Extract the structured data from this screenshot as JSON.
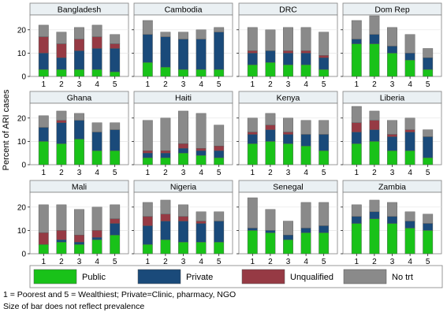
{
  "chart_data": {
    "type": "bar",
    "stacked": true,
    "ylabel": "Percent of ARI cases",
    "ylim": [
      0,
      25
    ],
    "yticks": [
      0,
      10,
      20
    ],
    "categories": [
      "1",
      "2",
      "3",
      "4",
      "5"
    ],
    "grid": true,
    "legend_position": "bottom",
    "series_names": [
      "Public",
      "Private",
      "Unqualified",
      "No trt"
    ],
    "series_colors": [
      "#19c219",
      "#1a4a7a",
      "#963a44",
      "#8a8a8a"
    ],
    "panels": [
      {
        "title": "Bangladesh",
        "public": [
          3,
          3,
          3,
          3,
          2
        ],
        "private": [
          7,
          5,
          8,
          9,
          10
        ],
        "unqualified": [
          7,
          6,
          5,
          5,
          2
        ],
        "no_trt": [
          5,
          5,
          5,
          5,
          4
        ]
      },
      {
        "title": "Cambodia",
        "public": [
          6,
          4,
          3,
          3,
          3
        ],
        "private": [
          12,
          13,
          13,
          13,
          16
        ],
        "unqualified": [
          0,
          0,
          0,
          0,
          0
        ],
        "no_trt": [
          6,
          2,
          3,
          4,
          2
        ]
      },
      {
        "title": "DRC",
        "public": [
          5,
          6,
          5,
          5,
          3
        ],
        "private": [
          5,
          5,
          5,
          5,
          5
        ],
        "unqualified": [
          1,
          0,
          1,
          1,
          1
        ],
        "no_trt": [
          10,
          9,
          10,
          10,
          10
        ]
      },
      {
        "title": "Dom Rep",
        "public": [
          14,
          14,
          10,
          7,
          3
        ],
        "private": [
          2,
          4,
          3,
          3,
          5
        ],
        "unqualified": [
          0,
          0,
          0,
          0,
          0
        ],
        "no_trt": [
          8,
          8,
          8,
          8,
          4
        ]
      },
      {
        "title": "Ghana",
        "public": [
          10,
          9,
          11,
          6,
          6
        ],
        "private": [
          6,
          9,
          8,
          8,
          9
        ],
        "unqualified": [
          0,
          1,
          0,
          0,
          0
        ],
        "no_trt": [
          5,
          4,
          3,
          4,
          3
        ]
      },
      {
        "title": "Haiti",
        "public": [
          3,
          3,
          5,
          4,
          3
        ],
        "private": [
          2,
          2,
          2,
          2,
          3
        ],
        "unqualified": [
          1,
          1,
          2,
          1,
          2
        ],
        "no_trt": [
          13,
          14,
          14,
          15,
          9
        ]
      },
      {
        "title": "Kenya",
        "public": [
          9,
          10,
          9,
          8,
          6
        ],
        "private": [
          4,
          5,
          4,
          5,
          7
        ],
        "unqualified": [
          1,
          2,
          1,
          0,
          0
        ],
        "no_trt": [
          6,
          5,
          6,
          6,
          6
        ]
      },
      {
        "title": "Liberia",
        "public": [
          9,
          10,
          6,
          6,
          3
        ],
        "private": [
          5,
          5,
          6,
          8,
          9
        ],
        "unqualified": [
          4,
          4,
          1,
          1,
          0
        ],
        "no_trt": [
          7,
          4,
          6,
          5,
          3
        ]
      },
      {
        "title": "Mali",
        "public": [
          4,
          5,
          4,
          6,
          8
        ],
        "private": [
          0,
          1,
          1,
          1,
          5
        ],
        "unqualified": [
          5,
          4,
          3,
          3,
          2
        ],
        "no_trt": [
          12,
          11,
          11,
          10,
          6
        ]
      },
      {
        "title": "Nigeria",
        "public": [
          4,
          6,
          5,
          5,
          5
        ],
        "private": [
          8,
          8,
          9,
          8,
          9
        ],
        "unqualified": [
          4,
          3,
          2,
          1,
          0
        ],
        "no_trt": [
          6,
          6,
          5,
          4,
          4
        ]
      },
      {
        "title": "Senegal",
        "public": [
          10,
          9,
          6,
          9,
          9
        ],
        "private": [
          1,
          1,
          2,
          2,
          3
        ],
        "unqualified": [
          0,
          0,
          0,
          0,
          0
        ],
        "no_trt": [
          13,
          9,
          6,
          11,
          10
        ]
      },
      {
        "title": "Zambia",
        "public": [
          13,
          15,
          13,
          11,
          10
        ],
        "private": [
          3,
          3,
          3,
          3,
          3
        ],
        "unqualified": [
          0,
          0,
          0,
          0,
          0
        ],
        "no_trt": [
          5,
          5,
          6,
          4,
          4
        ]
      }
    ]
  },
  "legend": {
    "items": [
      {
        "label": "Public",
        "color": "#19c219"
      },
      {
        "label": "Private",
        "color": "#1a4a7a"
      },
      {
        "label": "Unqualified",
        "color": "#963a44"
      },
      {
        "label": "No trt",
        "color": "#8a8a8a"
      }
    ]
  },
  "notes": {
    "line1": "1 = Poorest and 5 = Wealthiest; Private=Clinic, pharmacy, NGO",
    "line2": "Size of bar does not reflect prevalence"
  }
}
